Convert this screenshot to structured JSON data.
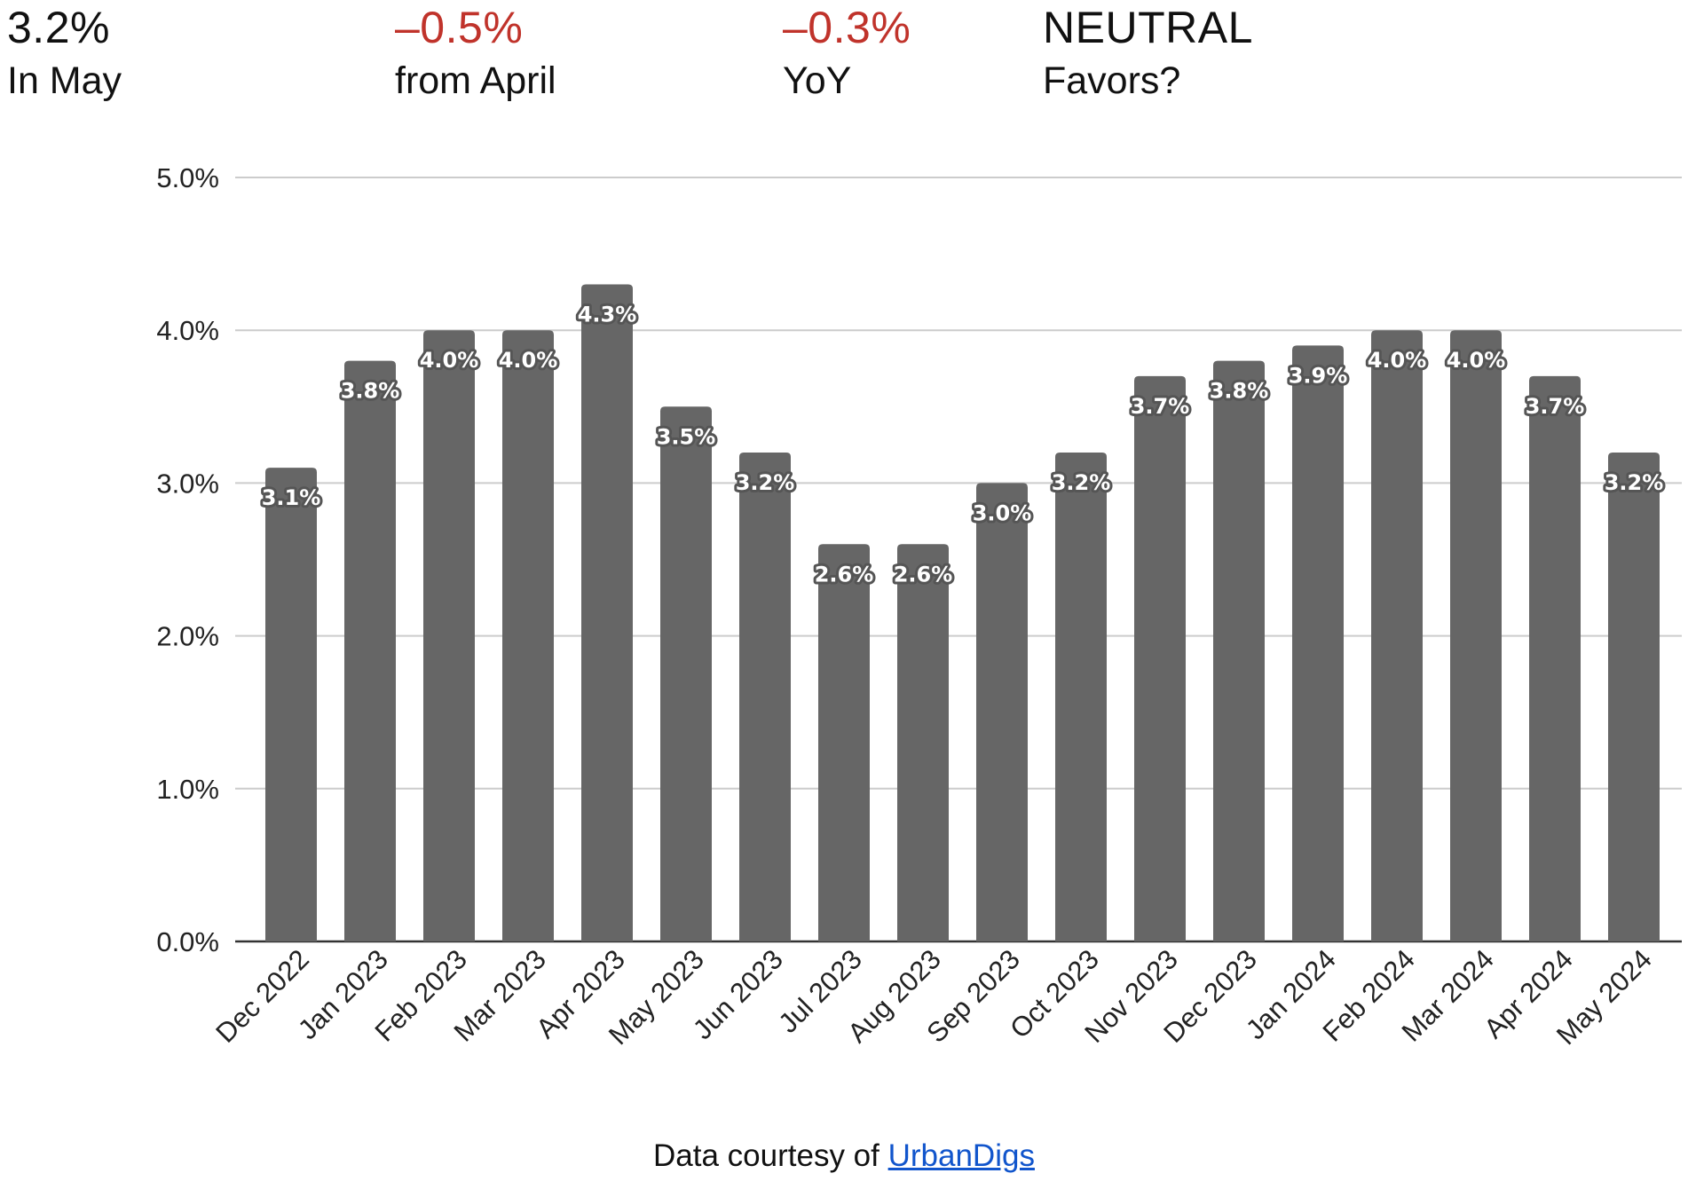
{
  "header": {
    "stats": [
      {
        "value": "3.2%",
        "caption": "In May",
        "color": "#111111"
      },
      {
        "value": "–0.5%",
        "caption": "from April",
        "color": "#c0332b"
      },
      {
        "value": "–0.3%",
        "caption": "YoY",
        "color": "#c0332b"
      },
      {
        "value": "NEUTRAL",
        "caption": "Favors?",
        "color": "#111111"
      }
    ]
  },
  "chart_data": {
    "type": "bar",
    "categories": [
      "Dec 2022",
      "Jan 2023",
      "Feb 2023",
      "Mar 2023",
      "Apr 2023",
      "May 2023",
      "Jun 2023",
      "Jul 2023",
      "Aug 2023",
      "Sep 2023",
      "Oct 2023",
      "Nov 2023",
      "Dec 2023",
      "Jan 2024",
      "Feb 2024",
      "Mar 2024",
      "Apr 2024",
      "May 2024"
    ],
    "values": [
      3.1,
      3.8,
      4.0,
      4.0,
      4.3,
      3.5,
      3.2,
      2.6,
      2.6,
      3.0,
      3.2,
      3.7,
      3.8,
      3.9,
      4.0,
      4.0,
      3.7,
      3.2
    ],
    "data_labels": [
      "3.1%",
      "3.8%",
      "4.0%",
      "4.0%",
      "4.3%",
      "3.5%",
      "3.2%",
      "2.6%",
      "2.6%",
      "3.0%",
      "3.2%",
      "3.7%",
      "3.8%",
      "3.9%",
      "4.0%",
      "4.0%",
      "3.7%",
      "3.2%"
    ],
    "ylim": [
      0,
      5
    ],
    "yticks": [
      0,
      1,
      2,
      3,
      4,
      5
    ],
    "ytick_labels": [
      "0.0%",
      "1.0%",
      "2.0%",
      "3.0%",
      "4.0%",
      "5.0%"
    ],
    "grid": true,
    "bar_color": "#666666",
    "grid_color": "#cccccc",
    "axis_color": "#333333",
    "xlabel": "",
    "ylabel": "",
    "title": ""
  },
  "footer": {
    "prefix": "Data courtesy of ",
    "link_text": "UrbanDigs",
    "link_color": "#1155cc"
  }
}
